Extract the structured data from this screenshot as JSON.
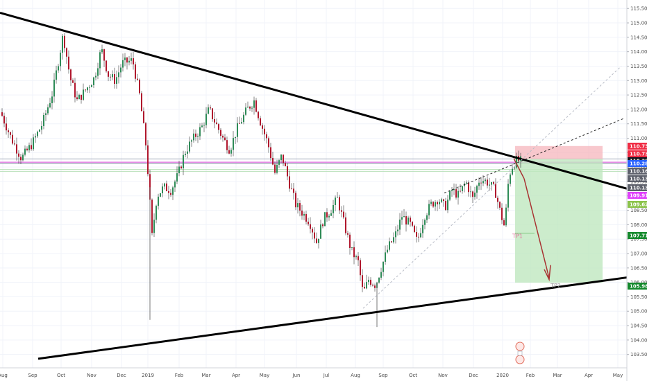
{
  "chart_data": {
    "type": "candlestick",
    "instrument_note": "",
    "y_axis": {
      "ticks": [
        "115.500",
        "115.000",
        "114.500",
        "114.000",
        "113.500",
        "113.000",
        "112.500",
        "112.000",
        "111.500",
        "111.000",
        "110.500",
        "110.000",
        "109.500",
        "109.000",
        "108.500",
        "108.000",
        "107.500",
        "107.000",
        "106.500",
        "106.000",
        "105.500",
        "105.000",
        "104.500",
        "104.000",
        "103.500"
      ],
      "ylim": [
        103.3,
        115.65
      ]
    },
    "x_axis": {
      "ticks": [
        "Aug",
        "Sep",
        "Oct",
        "Nov",
        "Dec",
        "2019",
        "Feb",
        "Mar",
        "Apr",
        "May",
        "Jun",
        "Jul",
        "Aug",
        "Sep",
        "Oct",
        "Nov",
        "Dec",
        "2020",
        "Feb",
        "Mar",
        "Apr",
        "May"
      ]
    },
    "price_path": [
      [
        0,
        111.9
      ],
      [
        15,
        111.0
      ],
      [
        30,
        110.3
      ],
      [
        45,
        110.8
      ],
      [
        60,
        111.5
      ],
      [
        75,
        112.6
      ],
      [
        90,
        114.6
      ],
      [
        100,
        113.1
      ],
      [
        110,
        112.3
      ],
      [
        120,
        112.6
      ],
      [
        135,
        113.1
      ],
      [
        145,
        114.1
      ],
      [
        155,
        113.2
      ],
      [
        165,
        113.0
      ],
      [
        175,
        113.6
      ],
      [
        190,
        113.7
      ],
      [
        200,
        112.5
      ],
      [
        210,
        110.6
      ],
      [
        218,
        107.6
      ],
      [
        225,
        109.0
      ],
      [
        235,
        109.3
      ],
      [
        245,
        109.2
      ],
      [
        255,
        109.7
      ],
      [
        265,
        110.5
      ],
      [
        275,
        110.9
      ],
      [
        290,
        111.4
      ],
      [
        300,
        112.0
      ],
      [
        310,
        111.5
      ],
      [
        320,
        111.0
      ],
      [
        330,
        110.6
      ],
      [
        340,
        111.3
      ],
      [
        355,
        112.0
      ],
      [
        365,
        112.3
      ],
      [
        375,
        111.5
      ],
      [
        385,
        110.8
      ],
      [
        395,
        109.8
      ],
      [
        405,
        110.4
      ],
      [
        415,
        109.5
      ],
      [
        425,
        108.7
      ],
      [
        435,
        108.4
      ],
      [
        445,
        108.1
      ],
      [
        455,
        107.4
      ],
      [
        465,
        108.2
      ],
      [
        475,
        108.5
      ],
      [
        485,
        108.9
      ],
      [
        495,
        108.0
      ],
      [
        505,
        107.1
      ],
      [
        515,
        106.7
      ],
      [
        522,
        105.6
      ],
      [
        530,
        106.1
      ],
      [
        540,
        105.9
      ],
      [
        548,
        106.5
      ],
      [
        558,
        107.2
      ],
      [
        568,
        107.6
      ],
      [
        578,
        108.3
      ],
      [
        590,
        108.0
      ],
      [
        600,
        107.4
      ],
      [
        610,
        108.3
      ],
      [
        620,
        108.7
      ],
      [
        630,
        108.9
      ],
      [
        640,
        108.6
      ],
      [
        650,
        109.2
      ],
      [
        660,
        109.0
      ],
      [
        670,
        109.5
      ],
      [
        680,
        108.9
      ],
      [
        690,
        109.6
      ],
      [
        700,
        109.5
      ],
      [
        712,
        109.2
      ],
      [
        720,
        108.4
      ],
      [
        726,
        107.9
      ],
      [
        732,
        109.7
      ],
      [
        738,
        110.1
      ],
      [
        744,
        110.25
      ],
      [
        749,
        110.2
      ]
    ],
    "horizontal_levels": [
      {
        "price": 110.281,
        "color": "#9aa3b5"
      },
      {
        "price": 110.162,
        "color": "#e88ce8"
      },
      {
        "price": 110.132,
        "color": "#9aa3b5"
      },
      {
        "price": 110.131,
        "color": "#9aa3b5"
      },
      {
        "price": 109.918,
        "color": "#b8e0b8"
      },
      {
        "price": 109.85,
        "color": "#b8e0b8"
      }
    ],
    "trendlines": {
      "upper": {
        "p1": {
          "x": 0,
          "price": 115.35
        },
        "p2": {
          "x": 903,
          "price": 109.25
        }
      },
      "lower": {
        "p1": {
          "x": 55,
          "price": 103.35
        },
        "p2": {
          "x": 903,
          "price": 106.17
        }
      }
    },
    "price_tags": [
      {
        "text": "110.731",
        "bg": "#f02b43"
      },
      {
        "text": "110.730",
        "bg": "#f02b43"
      },
      {
        "text": "110.281",
        "bg": "#131722"
      },
      {
        "text": "110.283",
        "bg": "#2962ff"
      },
      {
        "text": "110.162",
        "bg": "#5d606b"
      },
      {
        "text": "110.132",
        "bg": "#5d606b"
      },
      {
        "text": "110.131",
        "bg": "#5d606b"
      },
      {
        "text": "109.918",
        "bg": "#e040fb"
      },
      {
        "text": "109.623",
        "bg": "#8bc34a"
      },
      {
        "text": "107.711",
        "bg": "#14892c"
      },
      {
        "text": "105.988",
        "bg": "#14892c"
      }
    ],
    "short_position": {
      "entry_price": 110.28,
      "stop_price": 110.73,
      "target_price": 105.99,
      "tp1_price": 107.71,
      "x_start": 742,
      "x_end": 868
    },
    "annotations": [
      {
        "label": "TP1",
        "price": 107.711,
        "x": 738,
        "color": "#e26c9b"
      },
      {
        "label": "TP2",
        "price": 105.988,
        "x": 793,
        "color": "#9a9a9a"
      }
    ],
    "legend": ""
  }
}
